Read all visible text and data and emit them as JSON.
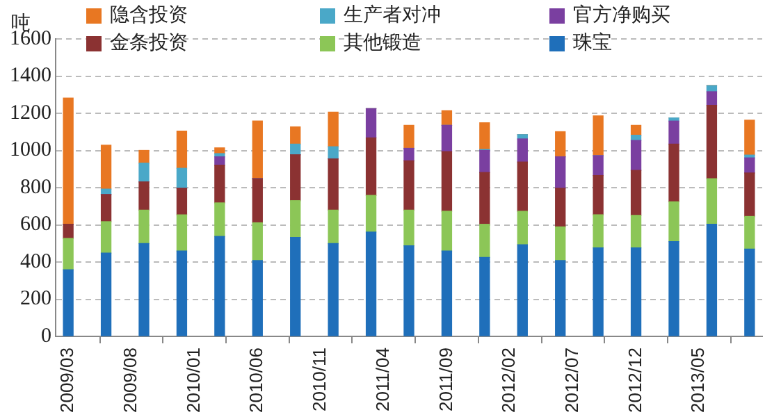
{
  "chart_data": {
    "type": "bar",
    "stacked": true,
    "ylabel": "吨",
    "x": [
      "2009-03",
      "2009-06",
      "2009-09",
      "2009-12",
      "2010-03",
      "2010-06",
      "2010-09",
      "2010-12",
      "2011-03",
      "2011-06",
      "2011-09",
      "2011-12",
      "2012-03",
      "2012-06",
      "2012-09",
      "2012-12",
      "2013-03",
      "2013-06",
      "2013-09"
    ],
    "series": [
      {
        "name": "珠宝",
        "color": "#1f6fba",
        "values": [
          358,
          448,
          499,
          459,
          538,
          408,
          532,
          499,
          561,
          487,
          459,
          425,
          493,
          408,
          476,
          476,
          510,
          603,
          470
        ]
      },
      {
        "name": "其他锻造",
        "color": "#8cc657",
        "values": [
          169,
          169,
          180,
          195,
          180,
          203,
          198,
          180,
          197,
          192,
          214,
          178,
          180,
          181,
          178,
          175,
          214,
          245,
          175
        ]
      },
      {
        "name": "金条投资",
        "color": "#8b3232",
        "values": [
          76,
          146,
          152,
          143,
          203,
          237,
          247,
          276,
          310,
          265,
          321,
          279,
          265,
          208,
          211,
          242,
          310,
          394,
          234
        ]
      },
      {
        "name": "官方净购买",
        "color": "#7a3fa0",
        "values": [
          0,
          0,
          0,
          0,
          45,
          0,
          0,
          0,
          157,
          67,
          141,
          118,
          124,
          169,
          107,
          161,
          124,
          74,
          81
        ]
      },
      {
        "name": "生产者对冲",
        "color": "#4aa8c8",
        "values": [
          0,
          29,
          101,
          107,
          17,
          0,
          57,
          65,
          0,
          0,
          0,
          6,
          23,
          0,
          0,
          28,
          17,
          33,
          15
        ]
      },
      {
        "name": "隐含投资",
        "color": "#e87722",
        "values": [
          679,
          236,
          68,
          200,
          31,
          310,
          93,
          186,
          0,
          124,
          79,
          143,
          0,
          135,
          214,
          53,
          0,
          0,
          188
        ]
      }
    ],
    "xlim": [
      "2009-02",
      "2013-10"
    ],
    "xticks": [
      {
        "value": "2009-03",
        "label": "2009/03"
      },
      {
        "value": "2009-08",
        "label": "2009/08"
      },
      {
        "value": "2010-01",
        "label": "2010/01"
      },
      {
        "value": "2010-06",
        "label": "2010/06"
      },
      {
        "value": "2010-11",
        "label": "2010/11"
      },
      {
        "value": "2011-04",
        "label": "2011/04"
      },
      {
        "value": "2011-09",
        "label": "2011/09"
      },
      {
        "value": "2012-02",
        "label": "2012/02"
      },
      {
        "value": "2012-07",
        "label": "2012/07"
      },
      {
        "value": "2012-12",
        "label": "2012/12"
      },
      {
        "value": "2013-05",
        "label": "2013/05"
      }
    ],
    "ylim": [
      0,
      1600
    ],
    "yticks": [
      0,
      200,
      400,
      600,
      800,
      1000,
      1200,
      1400,
      1600
    ],
    "grid": "y",
    "legend": "top"
  }
}
